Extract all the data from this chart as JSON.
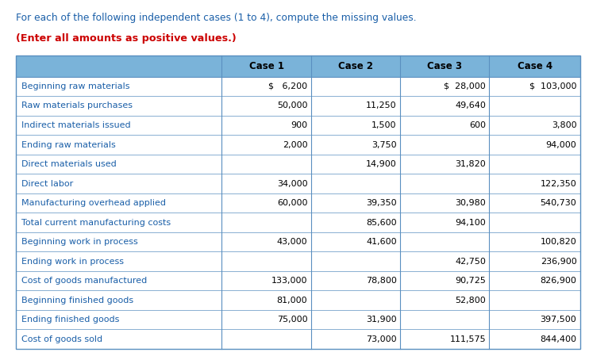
{
  "title_line1": "For each of the following independent cases (1 to 4), compute the missing values.",
  "title_line2": "(Enter all amounts as positive values.)",
  "col_headers": [
    "",
    "Case 1",
    "Case 2",
    "Case 3",
    "Case 4"
  ],
  "rows": [
    [
      "Beginning raw materials",
      "$   6,200",
      "",
      "$  28,000",
      "$  103,000"
    ],
    [
      "Raw materials purchases",
      "50,000",
      "11,250",
      "49,640",
      ""
    ],
    [
      "Indirect materials issued",
      "900",
      "1,500",
      "600",
      "3,800"
    ],
    [
      "Ending raw materials",
      "2,000",
      "3,750",
      "",
      "94,000"
    ],
    [
      "Direct materials used",
      "",
      "14,900",
      "31,820",
      ""
    ],
    [
      "Direct labor",
      "34,000",
      "",
      "",
      "122,350"
    ],
    [
      "Manufacturing overhead applied",
      "60,000",
      "39,350",
      "30,980",
      "540,730"
    ],
    [
      "Total current manufacturing costs",
      "",
      "85,600",
      "94,100",
      ""
    ],
    [
      "Beginning work in process",
      "43,000",
      "41,600",
      "",
      "100,820"
    ],
    [
      "Ending work in process",
      "",
      "",
      "42,750",
      "236,900"
    ],
    [
      "Cost of goods manufactured",
      "133,000",
      "78,800",
      "90,725",
      "826,900"
    ],
    [
      "Beginning finished goods",
      "81,000",
      "",
      "52,800",
      ""
    ],
    [
      "Ending finished goods",
      "75,000",
      "31,900",
      "",
      "397,500"
    ],
    [
      "Cost of goods sold",
      "",
      "73,000",
      "111,575",
      "844,400"
    ]
  ],
  "header_bg": "#7ab3d9",
  "label_color": "#1a5fa8",
  "data_color": "#000000",
  "title_color": "#1a5fa8",
  "subtitle_color": "#cc0000",
  "border_color": "#5a8fc0",
  "fig_width": 7.42,
  "fig_height": 4.54
}
